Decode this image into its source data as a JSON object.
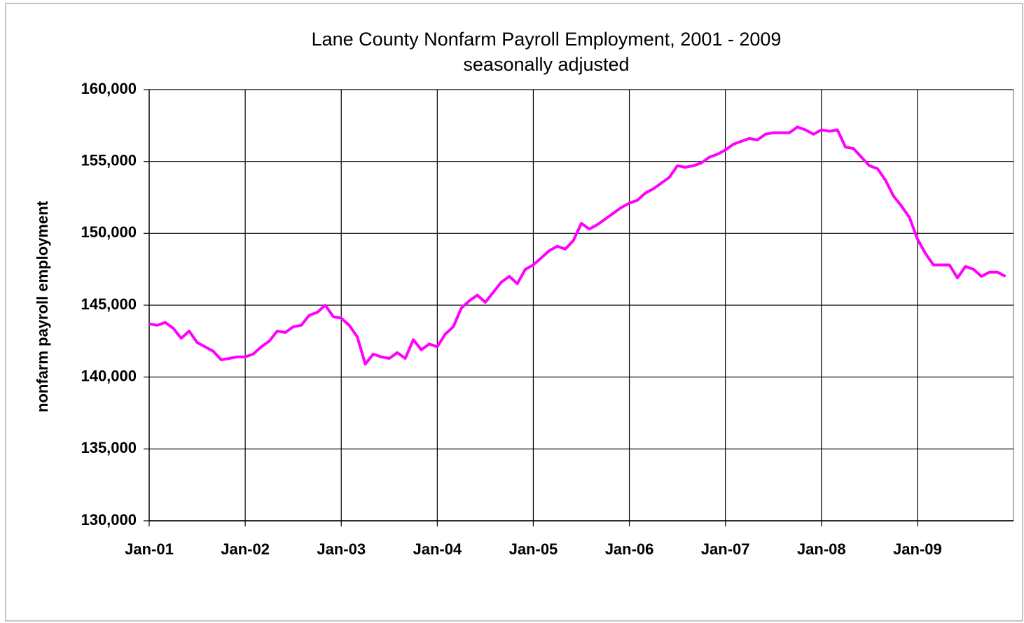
{
  "chart_data": {
    "type": "line",
    "title": "Lane County Nonfarm Payroll Employment, 2001 - 2009",
    "subtitle": "seasonally adjusted",
    "y_label": "nonfarm payroll employment",
    "categories": [
      "Jan-01",
      null,
      null,
      null,
      null,
      null,
      null,
      null,
      null,
      null,
      null,
      null,
      "Jan-02",
      null,
      null,
      null,
      null,
      null,
      null,
      null,
      null,
      null,
      null,
      null,
      "Jan-03",
      null,
      null,
      null,
      null,
      null,
      null,
      null,
      null,
      null,
      null,
      null,
      "Jan-04",
      null,
      null,
      null,
      null,
      null,
      null,
      null,
      null,
      null,
      null,
      null,
      "Jan-05",
      null,
      null,
      null,
      null,
      null,
      null,
      null,
      null,
      null,
      null,
      null,
      "Jan-06",
      null,
      null,
      null,
      null,
      null,
      null,
      null,
      null,
      null,
      null,
      null,
      "Jan-07",
      null,
      null,
      null,
      null,
      null,
      null,
      null,
      null,
      null,
      null,
      null,
      "Jan-08",
      null,
      null,
      null,
      null,
      null,
      null,
      null,
      null,
      null,
      null,
      null,
      "Jan-09",
      null,
      null,
      null,
      null,
      null,
      null,
      null,
      null,
      null,
      null,
      null
    ],
    "values": [
      143700,
      143600,
      143800,
      143400,
      142700,
      143200,
      142400,
      142100,
      141800,
      141200,
      141300,
      141400,
      141400,
      141600,
      142100,
      142500,
      143200,
      143100,
      143500,
      143600,
      144300,
      144500,
      145000,
      144200,
      144100,
      143600,
      142800,
      140900,
      141600,
      141400,
      141300,
      141700,
      141300,
      142600,
      141900,
      142300,
      142100,
      143000,
      143500,
      144800,
      145300,
      145700,
      145200,
      145900,
      146600,
      147000,
      146500,
      147500,
      147800,
      148300,
      148800,
      149100,
      148900,
      149500,
      150700,
      150300,
      150600,
      151000,
      151400,
      151800,
      152100,
      152300,
      152800,
      153100,
      153500,
      153900,
      154700,
      154600,
      154700,
      154900,
      155300,
      155500,
      155800,
      156200,
      156400,
      156600,
      156500,
      156900,
      157000,
      157000,
      157000,
      157400,
      157200,
      156900,
      157200,
      157100,
      157200,
      156000,
      155900,
      155300,
      154700,
      154500,
      153700,
      152600,
      151900,
      151100,
      149600,
      148600,
      147800,
      147800,
      147800,
      146900,
      147700,
      147500,
      147000,
      147300,
      147300,
      147000
    ],
    "color": "#ff00ff",
    "ylim": [
      130000,
      160000
    ],
    "yticks": [
      {
        "value": 130000,
        "label": "130,000"
      },
      {
        "value": 135000,
        "label": "135,000"
      },
      {
        "value": 140000,
        "label": "140,000"
      },
      {
        "value": 145000,
        "label": "145,000"
      },
      {
        "value": 150000,
        "label": "150,000"
      },
      {
        "value": 155000,
        "label": "155,000"
      },
      {
        "value": 160000,
        "label": "160,000"
      }
    ],
    "grid": true
  }
}
